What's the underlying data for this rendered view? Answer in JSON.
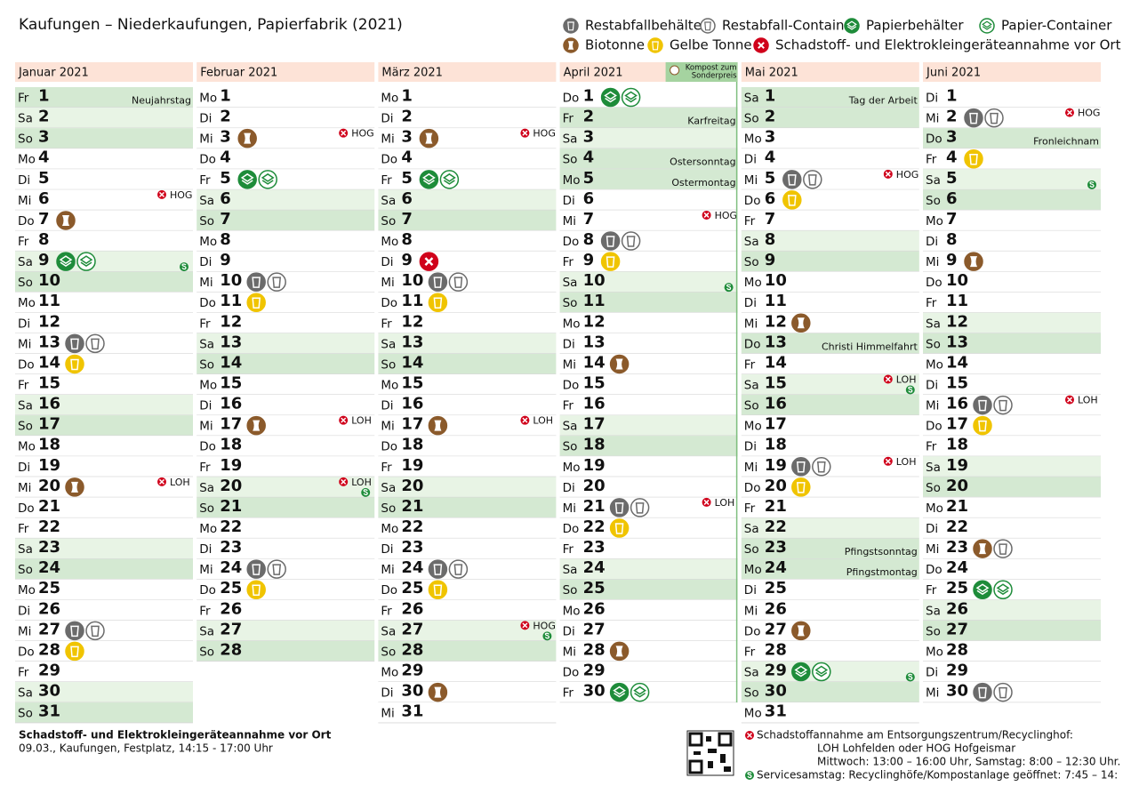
{
  "header": {
    "title": "Kaufungen – Niederkaufungen, Papierfabrik (2021)"
  },
  "legend": [
    {
      "label": "Restabfallbehälter",
      "color": "#6b6b6b",
      "style": "filled"
    },
    {
      "label": "Restabfall-Container",
      "color": "#6b6b6b",
      "style": "outline"
    },
    {
      "label": "Papierbehälter",
      "color": "#1e8c3a",
      "style": "filled"
    },
    {
      "label": "Papier-Container",
      "color": "#1e8c3a",
      "style": "outline"
    },
    {
      "label": "Biotonne",
      "color": "#8b5a2b",
      "style": "filled"
    },
    {
      "label": "Gelbe Tonne",
      "color": "#f0c400",
      "style": "filled"
    },
    {
      "label": "Schadstoff- und Elektrokleingeräteannahme vor Ort",
      "color": "#d0021b",
      "style": "filled"
    }
  ],
  "months": [
    {
      "name": "Januar 2021",
      "days": [
        {
          "wd": "Fr",
          "d": 1,
          "note": "Neujahrstag"
        },
        {
          "wd": "Sa",
          "d": 2
        },
        {
          "wd": "So",
          "d": 3
        },
        {
          "wd": "Mo",
          "d": 4
        },
        {
          "wd": "Di",
          "d": 5
        },
        {
          "wd": "Mi",
          "d": 6,
          "place": "HOG"
        },
        {
          "wd": "Do",
          "d": 7,
          "icons": [
            4
          ]
        },
        {
          "wd": "Fr",
          "d": 8
        },
        {
          "wd": "Sa",
          "d": 9,
          "icons": [
            2,
            3
          ],
          "service": true
        },
        {
          "wd": "So",
          "d": 10
        },
        {
          "wd": "Mo",
          "d": 11
        },
        {
          "wd": "Di",
          "d": 12
        },
        {
          "wd": "Mi",
          "d": 13,
          "icons": [
            0,
            1
          ]
        },
        {
          "wd": "Do",
          "d": 14,
          "icons": [
            5
          ]
        },
        {
          "wd": "Fr",
          "d": 15
        },
        {
          "wd": "Sa",
          "d": 16
        },
        {
          "wd": "So",
          "d": 17
        },
        {
          "wd": "Mo",
          "d": 18
        },
        {
          "wd": "Di",
          "d": 19
        },
        {
          "wd": "Mi",
          "d": 20,
          "icons": [
            4
          ],
          "place": "LOH"
        },
        {
          "wd": "Do",
          "d": 21
        },
        {
          "wd": "Fr",
          "d": 22
        },
        {
          "wd": "Sa",
          "d": 23
        },
        {
          "wd": "So",
          "d": 24
        },
        {
          "wd": "Mo",
          "d": 25
        },
        {
          "wd": "Di",
          "d": 26
        },
        {
          "wd": "Mi",
          "d": 27,
          "icons": [
            0,
            1
          ]
        },
        {
          "wd": "Do",
          "d": 28,
          "icons": [
            5
          ]
        },
        {
          "wd": "Fr",
          "d": 29
        },
        {
          "wd": "Sa",
          "d": 30
        },
        {
          "wd": "So",
          "d": 31
        }
      ]
    },
    {
      "name": "Februar 2021",
      "days": [
        {
          "wd": "Mo",
          "d": 1
        },
        {
          "wd": "Di",
          "d": 2
        },
        {
          "wd": "Mi",
          "d": 3,
          "icons": [
            4
          ],
          "place": "HOG"
        },
        {
          "wd": "Do",
          "d": 4
        },
        {
          "wd": "Fr",
          "d": 5,
          "icons": [
            2,
            3
          ]
        },
        {
          "wd": "Sa",
          "d": 6
        },
        {
          "wd": "So",
          "d": 7
        },
        {
          "wd": "Mo",
          "d": 8
        },
        {
          "wd": "Di",
          "d": 9
        },
        {
          "wd": "Mi",
          "d": 10,
          "icons": [
            0,
            1
          ]
        },
        {
          "wd": "Do",
          "d": 11,
          "icons": [
            5
          ]
        },
        {
          "wd": "Fr",
          "d": 12
        },
        {
          "wd": "Sa",
          "d": 13
        },
        {
          "wd": "So",
          "d": 14
        },
        {
          "wd": "Mo",
          "d": 15
        },
        {
          "wd": "Di",
          "d": 16
        },
        {
          "wd": "Mi",
          "d": 17,
          "icons": [
            4
          ],
          "place": "LOH"
        },
        {
          "wd": "Do",
          "d": 18
        },
        {
          "wd": "Fr",
          "d": 19
        },
        {
          "wd": "Sa",
          "d": 20,
          "place": "LOH",
          "service": true
        },
        {
          "wd": "So",
          "d": 21
        },
        {
          "wd": "Mo",
          "d": 22
        },
        {
          "wd": "Di",
          "d": 23
        },
        {
          "wd": "Mi",
          "d": 24,
          "icons": [
            0,
            1
          ]
        },
        {
          "wd": "Do",
          "d": 25,
          "icons": [
            5
          ]
        },
        {
          "wd": "Fr",
          "d": 26
        },
        {
          "wd": "Sa",
          "d": 27
        },
        {
          "wd": "So",
          "d": 28
        }
      ]
    },
    {
      "name": "März 2021",
      "days": [
        {
          "wd": "Mo",
          "d": 1
        },
        {
          "wd": "Di",
          "d": 2
        },
        {
          "wd": "Mi",
          "d": 3,
          "icons": [
            4
          ],
          "place": "HOG"
        },
        {
          "wd": "Do",
          "d": 4
        },
        {
          "wd": "Fr",
          "d": 5,
          "icons": [
            2,
            3
          ]
        },
        {
          "wd": "Sa",
          "d": 6
        },
        {
          "wd": "So",
          "d": 7
        },
        {
          "wd": "Mo",
          "d": 8
        },
        {
          "wd": "Di",
          "d": 9,
          "icons": [
            6
          ]
        },
        {
          "wd": "Mi",
          "d": 10,
          "icons": [
            0,
            1
          ]
        },
        {
          "wd": "Do",
          "d": 11,
          "icons": [
            5
          ]
        },
        {
          "wd": "Fr",
          "d": 12
        },
        {
          "wd": "Sa",
          "d": 13
        },
        {
          "wd": "So",
          "d": 14
        },
        {
          "wd": "Mo",
          "d": 15
        },
        {
          "wd": "Di",
          "d": 16
        },
        {
          "wd": "Mi",
          "d": 17,
          "icons": [
            4
          ],
          "place": "LOH"
        },
        {
          "wd": "Do",
          "d": 18
        },
        {
          "wd": "Fr",
          "d": 19
        },
        {
          "wd": "Sa",
          "d": 20
        },
        {
          "wd": "So",
          "d": 21
        },
        {
          "wd": "Mo",
          "d": 22
        },
        {
          "wd": "Di",
          "d": 23
        },
        {
          "wd": "Mi",
          "d": 24,
          "icons": [
            0,
            1
          ]
        },
        {
          "wd": "Do",
          "d": 25,
          "icons": [
            5
          ]
        },
        {
          "wd": "Fr",
          "d": 26
        },
        {
          "wd": "Sa",
          "d": 27,
          "place": "HOG",
          "service": true
        },
        {
          "wd": "So",
          "d": 28
        },
        {
          "wd": "Mo",
          "d": 29
        },
        {
          "wd": "Di",
          "d": 30,
          "icons": [
            4
          ]
        },
        {
          "wd": "Mi",
          "d": 31
        }
      ]
    },
    {
      "name": "April 2021",
      "badge": [
        "Kompost zum",
        "Sonderpreis"
      ],
      "days": [
        {
          "wd": "Do",
          "d": 1,
          "icons": [
            2,
            3
          ]
        },
        {
          "wd": "Fr",
          "d": 2,
          "note": "Karfreitag"
        },
        {
          "wd": "Sa",
          "d": 3
        },
        {
          "wd": "So",
          "d": 4,
          "note": "Ostersonntag"
        },
        {
          "wd": "Mo",
          "d": 5,
          "note": "Ostermontag"
        },
        {
          "wd": "Di",
          "d": 6
        },
        {
          "wd": "Mi",
          "d": 7,
          "place": "HOG"
        },
        {
          "wd": "Do",
          "d": 8,
          "icons": [
            0,
            1
          ]
        },
        {
          "wd": "Fr",
          "d": 9,
          "icons": [
            5
          ]
        },
        {
          "wd": "Sa",
          "d": 10,
          "service": true
        },
        {
          "wd": "So",
          "d": 11
        },
        {
          "wd": "Mo",
          "d": 12
        },
        {
          "wd": "Di",
          "d": 13
        },
        {
          "wd": "Mi",
          "d": 14,
          "icons": [
            4
          ]
        },
        {
          "wd": "Do",
          "d": 15
        },
        {
          "wd": "Fr",
          "d": 16
        },
        {
          "wd": "Sa",
          "d": 17
        },
        {
          "wd": "So",
          "d": 18
        },
        {
          "wd": "Mo",
          "d": 19
        },
        {
          "wd": "Di",
          "d": 20
        },
        {
          "wd": "Mi",
          "d": 21,
          "icons": [
            0,
            1
          ],
          "place": "LOH"
        },
        {
          "wd": "Do",
          "d": 22,
          "icons": [
            5
          ]
        },
        {
          "wd": "Fr",
          "d": 23
        },
        {
          "wd": "Sa",
          "d": 24
        },
        {
          "wd": "So",
          "d": 25
        },
        {
          "wd": "Mo",
          "d": 26
        },
        {
          "wd": "Di",
          "d": 27
        },
        {
          "wd": "Mi",
          "d": 28,
          "icons": [
            4
          ]
        },
        {
          "wd": "Do",
          "d": 29
        },
        {
          "wd": "Fr",
          "d": 30,
          "icons": [
            2,
            3
          ]
        }
      ]
    },
    {
      "name": "Mai 2021",
      "days": [
        {
          "wd": "Sa",
          "d": 1,
          "note": "Tag der Arbeit"
        },
        {
          "wd": "So",
          "d": 2
        },
        {
          "wd": "Mo",
          "d": 3
        },
        {
          "wd": "Di",
          "d": 4
        },
        {
          "wd": "Mi",
          "d": 5,
          "icons": [
            0,
            1
          ],
          "place": "HOG"
        },
        {
          "wd": "Do",
          "d": 6,
          "icons": [
            5
          ]
        },
        {
          "wd": "Fr",
          "d": 7
        },
        {
          "wd": "Sa",
          "d": 8
        },
        {
          "wd": "So",
          "d": 9
        },
        {
          "wd": "Mo",
          "d": 10
        },
        {
          "wd": "Di",
          "d": 11
        },
        {
          "wd": "Mi",
          "d": 12,
          "icons": [
            4
          ]
        },
        {
          "wd": "Do",
          "d": 13,
          "note": "Christi Himmelfahrt"
        },
        {
          "wd": "Fr",
          "d": 14
        },
        {
          "wd": "Sa",
          "d": 15,
          "place": "LOH",
          "service": true
        },
        {
          "wd": "So",
          "d": 16
        },
        {
          "wd": "Mo",
          "d": 17
        },
        {
          "wd": "Di",
          "d": 18
        },
        {
          "wd": "Mi",
          "d": 19,
          "icons": [
            0,
            1
          ],
          "place": "LOH"
        },
        {
          "wd": "Do",
          "d": 20,
          "icons": [
            5
          ]
        },
        {
          "wd": "Fr",
          "d": 21
        },
        {
          "wd": "Sa",
          "d": 22
        },
        {
          "wd": "So",
          "d": 23,
          "note": "Pfingstsonntag"
        },
        {
          "wd": "Mo",
          "d": 24,
          "note": "Pfingstmontag"
        },
        {
          "wd": "Di",
          "d": 25
        },
        {
          "wd": "Mi",
          "d": 26
        },
        {
          "wd": "Do",
          "d": 27,
          "icons": [
            4
          ]
        },
        {
          "wd": "Fr",
          "d": 28
        },
        {
          "wd": "Sa",
          "d": 29,
          "icons": [
            2,
            3
          ],
          "service": true
        },
        {
          "wd": "So",
          "d": 30
        },
        {
          "wd": "Mo",
          "d": 31
        }
      ]
    },
    {
      "name": "Juni 2021",
      "days": [
        {
          "wd": "Di",
          "d": 1
        },
        {
          "wd": "Mi",
          "d": 2,
          "icons": [
            0,
            1
          ],
          "place": "HOG"
        },
        {
          "wd": "Do",
          "d": 3,
          "note": "Fronleichnam"
        },
        {
          "wd": "Fr",
          "d": 4,
          "icons": [
            5
          ]
        },
        {
          "wd": "Sa",
          "d": 5,
          "service": true
        },
        {
          "wd": "So",
          "d": 6
        },
        {
          "wd": "Mo",
          "d": 7
        },
        {
          "wd": "Di",
          "d": 8
        },
        {
          "wd": "Mi",
          "d": 9,
          "icons": [
            4
          ]
        },
        {
          "wd": "Do",
          "d": 10
        },
        {
          "wd": "Fr",
          "d": 11
        },
        {
          "wd": "Sa",
          "d": 12
        },
        {
          "wd": "So",
          "d": 13
        },
        {
          "wd": "Mo",
          "d": 14
        },
        {
          "wd": "Di",
          "d": 15
        },
        {
          "wd": "Mi",
          "d": 16,
          "icons": [
            0,
            1
          ],
          "place": "LOH"
        },
        {
          "wd": "Do",
          "d": 17,
          "icons": [
            5
          ]
        },
        {
          "wd": "Fr",
          "d": 18
        },
        {
          "wd": "Sa",
          "d": 19
        },
        {
          "wd": "So",
          "d": 20
        },
        {
          "wd": "Mo",
          "d": 21
        },
        {
          "wd": "Di",
          "d": 22
        },
        {
          "wd": "Mi",
          "d": 23,
          "icons": [
            4,
            1
          ]
        },
        {
          "wd": "Do",
          "d": 24
        },
        {
          "wd": "Fr",
          "d": 25,
          "icons": [
            2,
            3
          ]
        },
        {
          "wd": "Sa",
          "d": 26
        },
        {
          "wd": "So",
          "d": 27
        },
        {
          "wd": "Mo",
          "d": 28
        },
        {
          "wd": "Di",
          "d": 29
        },
        {
          "wd": "Mi",
          "d": 30,
          "icons": [
            0,
            1
          ]
        }
      ]
    }
  ],
  "footer": {
    "left": {
      "title": "Schadstoff- und Elektrokleingeräteannahme vor Ort",
      "text": "09.03., Kaufungen, Festplatz, 14:15 - 17:00 Uhr"
    },
    "right": [
      "Schadstoffannahme am Entsorgungszentrum/Recyclinghof:",
      "LOH Lohfelden oder HOG Hofgeismar",
      "Mittwoch: 13:00 – 16:00 Uhr, Samstag: 8:00 – 12:30 Uhr.",
      "Servicesamstag: Recyclinghöfe/Kompostanlage geöffnet: 7:45 – 14:"
    ]
  }
}
